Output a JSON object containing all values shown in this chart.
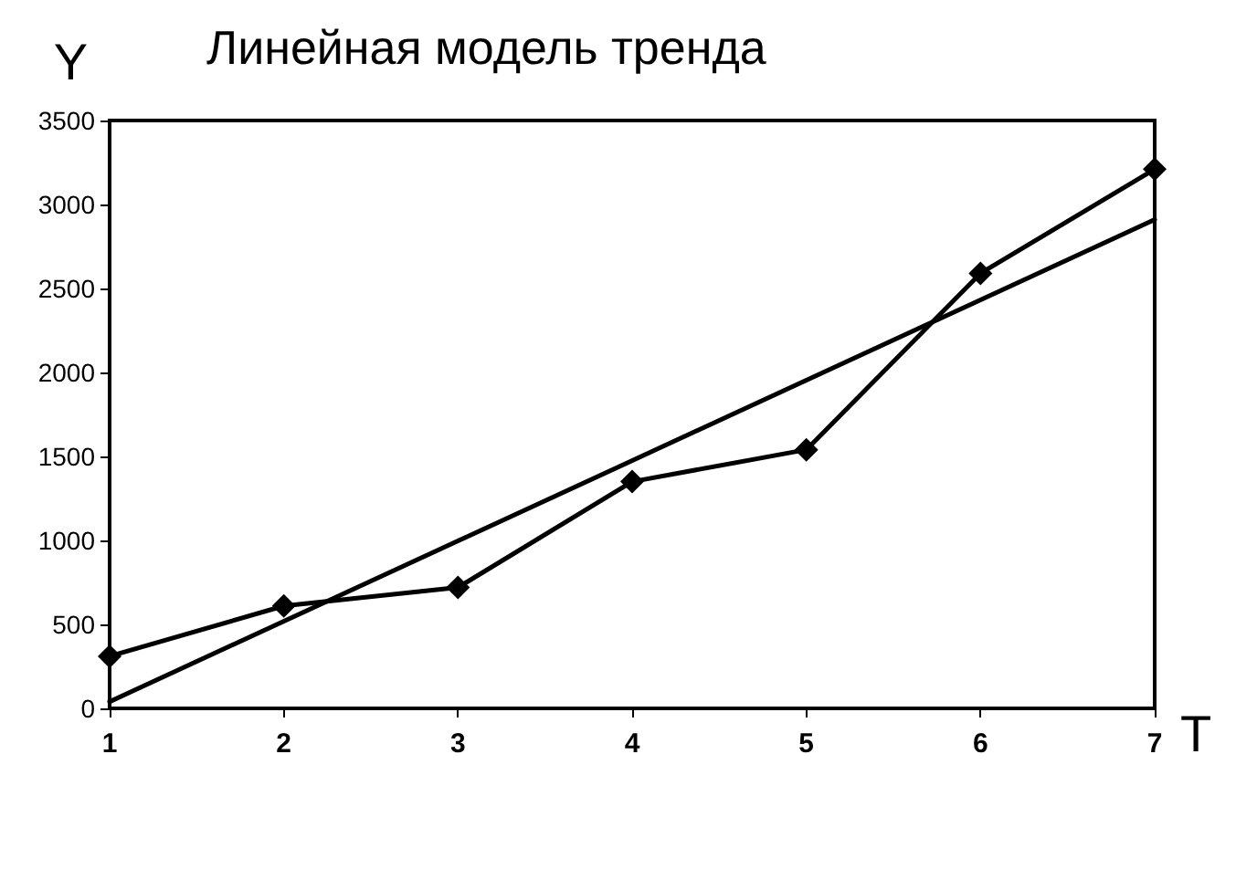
{
  "chart_data": {
    "type": "line",
    "title": "Линейная модель тренда",
    "xlabel": "T",
    "ylabel": "Y",
    "x": [
      1,
      2,
      3,
      4,
      5,
      6,
      7
    ],
    "series": [
      {
        "color": "#000000",
        "values": [
          310,
          610,
          720,
          1350,
          1540,
          2590,
          3210
        ],
        "marker": "diamond"
      },
      {
        "color": "#000000",
        "x": [
          1,
          7
        ],
        "values": [
          40,
          2910
        ],
        "marker": "none"
      }
    ],
    "xlim": [
      1,
      7
    ],
    "xticks": [
      1,
      2,
      3,
      4,
      5,
      6,
      7
    ],
    "ylim": [
      0,
      3500
    ],
    "yticks": [
      0,
      500,
      1000,
      1500,
      2000,
      2500,
      3000,
      3500
    ],
    "grid": false,
    "line_style": "solid"
  }
}
